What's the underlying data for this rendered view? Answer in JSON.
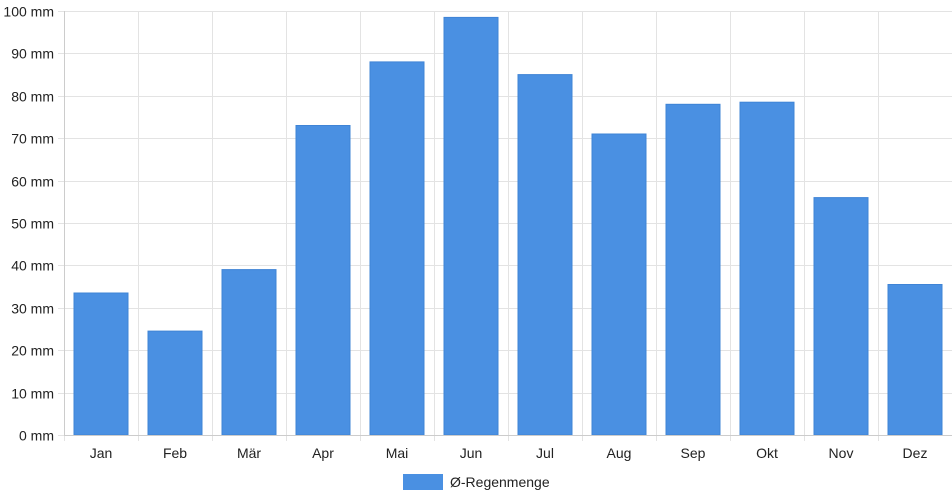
{
  "chart_data": {
    "type": "bar",
    "categories": [
      "Jan",
      "Feb",
      "Mär",
      "Apr",
      "Mai",
      "Jun",
      "Jul",
      "Aug",
      "Sep",
      "Okt",
      "Nov",
      "Dez"
    ],
    "series": [
      {
        "name": "Ø-Regenmenge",
        "values": [
          33.5,
          24.5,
          39,
          73,
          88,
          98.5,
          85,
          71,
          78,
          78.5,
          56,
          35.5
        ],
        "color": "#4a90e2"
      }
    ],
    "ylim": [
      0,
      100
    ],
    "y_ticks": [
      0,
      10,
      20,
      30,
      40,
      50,
      60,
      70,
      80,
      90,
      100
    ],
    "y_tick_labels": [
      "0 mm",
      "10 mm",
      "20 mm",
      "30 mm",
      "40 mm",
      "50 mm",
      "60 mm",
      "70 mm",
      "80 mm",
      "90 mm",
      "100 mm"
    ],
    "grid": true,
    "legend_position": "bottom-center"
  }
}
